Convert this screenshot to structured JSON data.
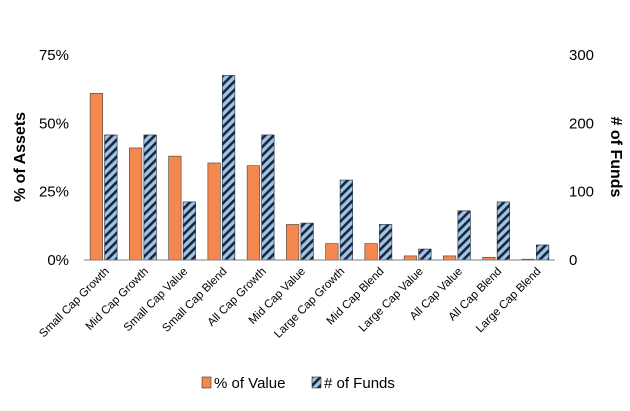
{
  "chart_data": {
    "type": "bar",
    "title": "",
    "categories": [
      "Small Cap Growth",
      "Mid Cap Growth",
      "Small Cap Value",
      "Small Cap Blend",
      "All Cap Growth",
      "Mid Cap Value",
      "Large Cap Growth",
      "Mid Cap Blend",
      "Large Cap Value",
      "All Cap Value",
      "All Cap Blend",
      "Large Cap Blend"
    ],
    "series": [
      {
        "name": "% of Value",
        "axis": "left",
        "color": "#f4884f",
        "values": [
          61,
          41,
          38,
          35.5,
          34.5,
          13,
          6,
          6,
          1.5,
          1.5,
          1,
          0.3
        ]
      },
      {
        "name": "# of Funds",
        "axis": "right",
        "color": "#9dc3e6",
        "pattern": "diagonal-stripes",
        "values": [
          183,
          183,
          85,
          270,
          183,
          54,
          117,
          52,
          16,
          72,
          85,
          22
        ]
      }
    ],
    "ylabel": "% of Assets",
    "ylim": [
      0,
      75
    ],
    "yticks": [
      "0%",
      "25%",
      "50%",
      "75%"
    ],
    "y2label": "# of Funds",
    "y2lim": [
      0,
      300
    ],
    "y2ticks": [
      "0",
      "100",
      "200",
      "300"
    ],
    "grid": false,
    "legend_position": "bottom"
  }
}
